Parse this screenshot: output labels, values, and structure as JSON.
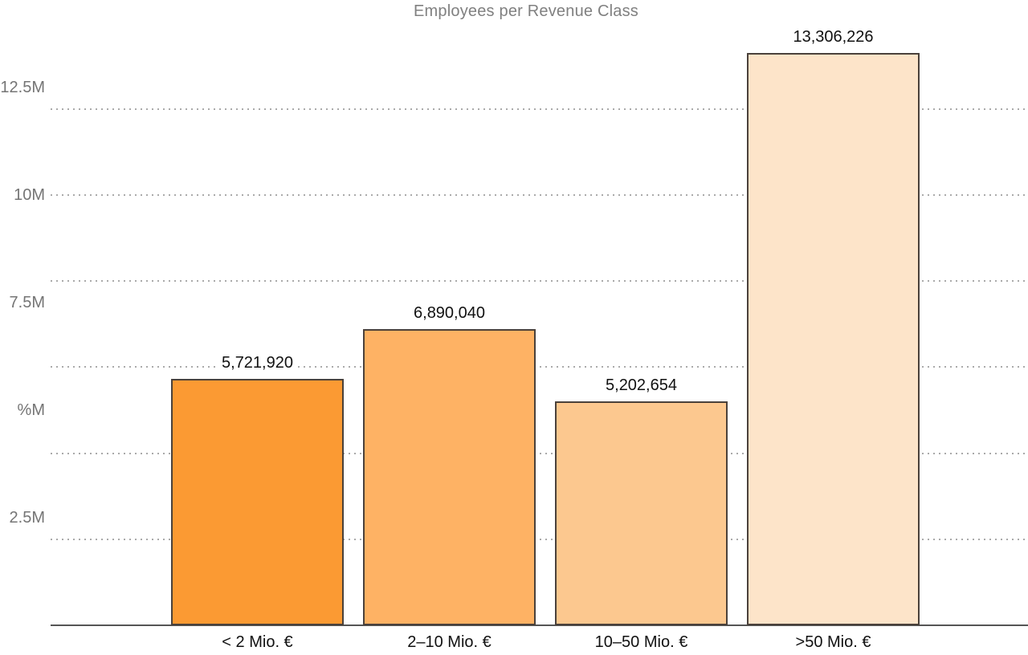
{
  "chart_data": {
    "type": "bar",
    "title": "Employees per Revenue Class",
    "categories": [
      "< 2 Mio. €",
      "2–10 Mio. €",
      "10–50 Mio. €",
      ">50 Mio. €"
    ],
    "values": [
      5721920,
      6890040,
      5202654,
      13306226
    ],
    "value_labels": [
      "5,721,920",
      "6,890,040",
      "5,202,654",
      "13,306,226"
    ],
    "bar_colors": [
      "#fb9a33",
      "#feb264",
      "#fcc88f",
      "#fde4c9"
    ],
    "bar_border_color": "#4a413b",
    "xlabel": "",
    "ylabel": "",
    "legend": "none",
    "grid": "horizontal-dotted",
    "y_axis": {
      "tick_labels": [
        "12.5M",
        "10M",
        "7.5M",
        "%M",
        "2.5M"
      ],
      "tick_values": [
        12500000,
        10000000,
        7500000,
        5000000,
        2500000
      ],
      "gridline_values": [
        12000000,
        10000000,
        8000000,
        6000000,
        4000000,
        2000000
      ],
      "range": [
        0,
        13306226
      ]
    },
    "colors": {
      "title": "#808080",
      "y_tick_label": "#757575",
      "value_label": "#111111",
      "x_tick_label": "#111111",
      "gridline": "#aaaaaa",
      "axis_line": "#555555",
      "background": "#ffffff"
    }
  }
}
